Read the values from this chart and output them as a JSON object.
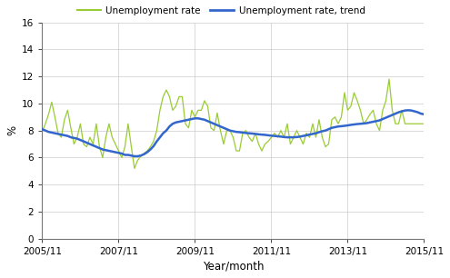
{
  "ylabel": "%",
  "xlabel": "Year/month",
  "ylim": [
    0,
    16
  ],
  "yticks": [
    0,
    2,
    4,
    6,
    8,
    10,
    12,
    14,
    16
  ],
  "xtick_labels": [
    "2005/11",
    "2007/11",
    "2009/11",
    "2011/11",
    "2013/11",
    "2015/11"
  ],
  "legend_labels": [
    "Unemployment rate",
    "Unemployment rate, trend"
  ],
  "line_color_unemp": "#99cc33",
  "line_color_trend": "#3366cc",
  "n_months": 121,
  "xtick_pos": [
    0,
    24,
    48,
    72,
    96,
    120
  ],
  "unemp": [
    7.9,
    8.5,
    9.2,
    10.1,
    9.0,
    7.8,
    7.5,
    8.8,
    9.5,
    8.2,
    7.0,
    7.5,
    8.5,
    7.0,
    6.8,
    7.5,
    7.0,
    8.5,
    6.8,
    6.0,
    7.5,
    8.5,
    7.5,
    7.0,
    6.5,
    6.0,
    6.8,
    8.5,
    6.8,
    5.2,
    5.8,
    6.1,
    6.3,
    6.5,
    6.8,
    7.2,
    8.0,
    9.5,
    10.5,
    11.0,
    10.5,
    9.5,
    9.8,
    10.5,
    10.5,
    8.5,
    8.2,
    9.5,
    9.0,
    9.5,
    9.5,
    10.2,
    9.8,
    8.2,
    8.0,
    9.3,
    8.0,
    7.0,
    8.0,
    8.0,
    7.5,
    6.5,
    6.5,
    7.8,
    8.0,
    7.5,
    7.2,
    7.8,
    7.0,
    6.5,
    7.0,
    7.2,
    7.5,
    7.8,
    7.5,
    8.0,
    7.5,
    8.5,
    7.0,
    7.5,
    8.0,
    7.5,
    7.0,
    7.8,
    7.5,
    8.5,
    7.5,
    8.8,
    7.5,
    6.8,
    7.0,
    8.8,
    9.0,
    8.5,
    9.0,
    10.8,
    9.5,
    9.8,
    10.8,
    10.2,
    9.5,
    8.5,
    8.8,
    9.2,
    9.5,
    8.5,
    8.0,
    9.5,
    10.2,
    11.8,
    9.5,
    8.5,
    8.5,
    9.5,
    8.5,
    8.5,
    8.5,
    8.5,
    8.5,
    8.5,
    8.5
  ],
  "trend": [
    8.1,
    8.0,
    7.9,
    7.85,
    7.8,
    7.75,
    7.7,
    7.65,
    7.6,
    7.5,
    7.45,
    7.4,
    7.3,
    7.2,
    7.1,
    7.0,
    6.9,
    6.8,
    6.7,
    6.6,
    6.55,
    6.5,
    6.45,
    6.4,
    6.35,
    6.3,
    6.2,
    6.2,
    6.15,
    6.1,
    6.1,
    6.15,
    6.25,
    6.4,
    6.6,
    6.85,
    7.2,
    7.5,
    7.8,
    8.0,
    8.3,
    8.5,
    8.6,
    8.65,
    8.7,
    8.75,
    8.8,
    8.85,
    8.9,
    8.9,
    8.85,
    8.8,
    8.7,
    8.6,
    8.5,
    8.4,
    8.3,
    8.2,
    8.1,
    8.0,
    7.95,
    7.9,
    7.88,
    7.85,
    7.82,
    7.8,
    7.78,
    7.75,
    7.72,
    7.7,
    7.68,
    7.65,
    7.62,
    7.6,
    7.58,
    7.55,
    7.52,
    7.5,
    7.5,
    7.5,
    7.52,
    7.55,
    7.6,
    7.65,
    7.7,
    7.75,
    7.8,
    7.88,
    7.95,
    8.0,
    8.1,
    8.2,
    8.25,
    8.3,
    8.32,
    8.35,
    8.38,
    8.42,
    8.45,
    8.48,
    8.5,
    8.52,
    8.55,
    8.6,
    8.65,
    8.7,
    8.75,
    8.85,
    8.95,
    9.05,
    9.15,
    9.25,
    9.35,
    9.42,
    9.48,
    9.5,
    9.48,
    9.42,
    9.35,
    9.25,
    9.2
  ]
}
